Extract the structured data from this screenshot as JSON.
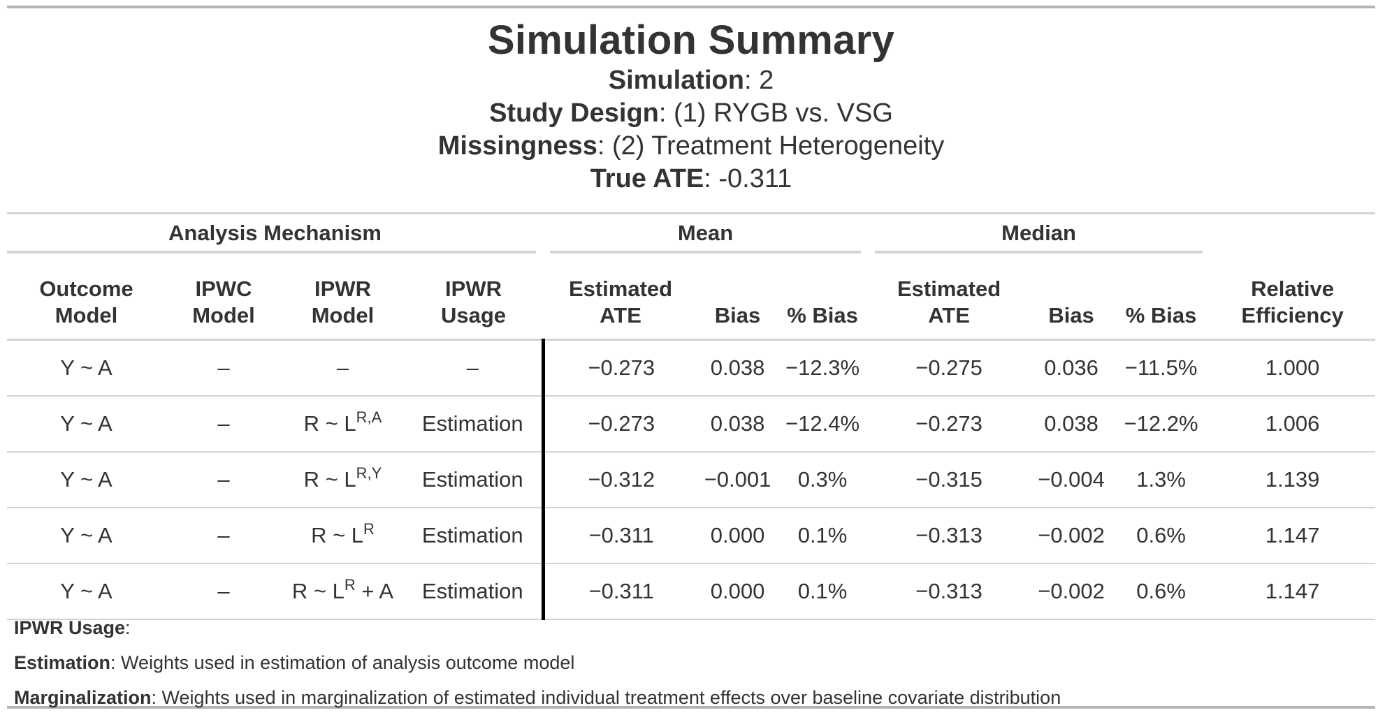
{
  "title": "Simulation Summary",
  "subtitle": {
    "simulation_label": "Simulation",
    "simulation_value": ": 2",
    "design_label": "Study Design",
    "design_value": ": (1) RYGB vs. VSG",
    "missingness_label": "Missingness",
    "missingness_value": ": (2) Treatment Heterogeneity",
    "ate_label": "True ATE",
    "ate_value": ": -0.311"
  },
  "table": {
    "spanners": {
      "analysis": "Analysis Mechanism",
      "mean": "Mean",
      "median": "Median"
    },
    "columns": {
      "outcome": [
        "Outcome",
        "Model"
      ],
      "ipwc": [
        "IPWC",
        "Model"
      ],
      "ipwr": [
        "IPWR",
        "Model"
      ],
      "usage": [
        "IPWR",
        "Usage"
      ],
      "mean_ate": [
        "Estimated",
        "ATE"
      ],
      "mean_bias": "Bias",
      "mean_pbias": "% Bias",
      "median_ate": [
        "Estimated",
        "ATE"
      ],
      "median_bias": "Bias",
      "median_pbias": "% Bias",
      "rel_eff": [
        "Relative",
        "Efficiency"
      ]
    },
    "rows": [
      {
        "outcome": "Y ~ A",
        "ipwc": "–",
        "ipwr_base": "–",
        "ipwr_sup": "",
        "ipwr_tail": "",
        "usage": "–",
        "mean_ate": "−0.273",
        "mean_bias": "0.038",
        "mean_pbias": "−12.3%",
        "median_ate": "−0.275",
        "median_bias": "0.036",
        "median_pbias": "−11.5%",
        "rel_eff": "1.000"
      },
      {
        "outcome": "Y ~ A",
        "ipwc": "–",
        "ipwr_base": "R ~ L",
        "ipwr_sup": "R,A",
        "ipwr_tail": "",
        "usage": "Estimation",
        "mean_ate": "−0.273",
        "mean_bias": "0.038",
        "mean_pbias": "−12.4%",
        "median_ate": "−0.273",
        "median_bias": "0.038",
        "median_pbias": "−12.2%",
        "rel_eff": "1.006"
      },
      {
        "outcome": "Y ~ A",
        "ipwc": "–",
        "ipwr_base": "R ~ L",
        "ipwr_sup": "R,Y",
        "ipwr_tail": "",
        "usage": "Estimation",
        "mean_ate": "−0.312",
        "mean_bias": "−0.001",
        "mean_pbias": "0.3%",
        "median_ate": "−0.315",
        "median_bias": "−0.004",
        "median_pbias": "1.3%",
        "rel_eff": "1.139"
      },
      {
        "outcome": "Y ~ A",
        "ipwc": "–",
        "ipwr_base": "R ~ L",
        "ipwr_sup": "R",
        "ipwr_tail": "",
        "usage": "Estimation",
        "mean_ate": "−0.311",
        "mean_bias": "0.000",
        "mean_pbias": "0.1%",
        "median_ate": "−0.313",
        "median_bias": "−0.002",
        "median_pbias": "0.6%",
        "rel_eff": "1.147"
      },
      {
        "outcome": "Y ~ A",
        "ipwc": "–",
        "ipwr_base": "R ~ L",
        "ipwr_sup": "R",
        "ipwr_tail": " + A",
        "usage": "Estimation",
        "mean_ate": "−0.311",
        "mean_bias": "0.000",
        "mean_pbias": "0.1%",
        "median_ate": "−0.313",
        "median_bias": "−0.002",
        "median_pbias": "0.6%",
        "rel_eff": "1.147"
      }
    ]
  },
  "footnotes": {
    "usage_label": "IPWR Usage",
    "usage_colon": ":",
    "estimation_label": "Estimation",
    "estimation_text": ": Weights used in estimation of analysis outcome model",
    "marginalization_label": "Marginalization",
    "marginalization_text": ": Weights used in marginalization of estimated individual treatment effects over baseline covariate distribution"
  }
}
